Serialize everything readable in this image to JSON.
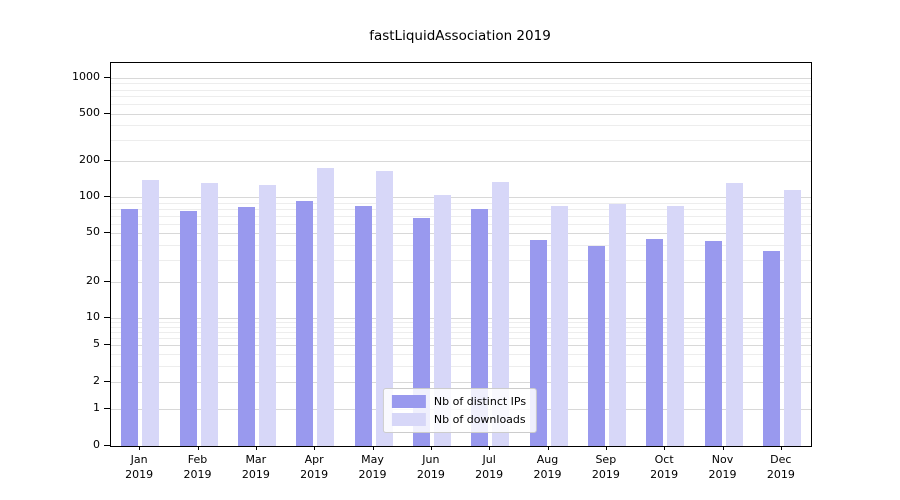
{
  "chart_data": {
    "type": "bar",
    "title": "fastLiquidAssociation 2019",
    "categories": [
      "Jan",
      "Feb",
      "Mar",
      "Apr",
      "May",
      "Jun",
      "Jul",
      "Aug",
      "Sep",
      "Oct",
      "Nov",
      "Dec"
    ],
    "year": "2019",
    "series": [
      {
        "name": "Nb of distinct IPs",
        "color": "#9999ee",
        "values": [
          80,
          77,
          82,
          92,
          85,
          67,
          80,
          44,
          39,
          45,
          43,
          36
        ]
      },
      {
        "name": "Nb of downloads",
        "color": "#d7d7f8",
        "values": [
          140,
          130,
          125,
          175,
          165,
          103,
          135,
          84,
          87,
          84,
          130,
          115
        ]
      }
    ],
    "y_ticks": [
      0,
      1,
      2,
      5,
      10,
      20,
      50,
      100,
      200,
      500,
      1000
    ],
    "y_scale": "symlog",
    "ylim": [
      0,
      1000
    ],
    "grid": true,
    "legend_position": "lower-center-inside"
  }
}
